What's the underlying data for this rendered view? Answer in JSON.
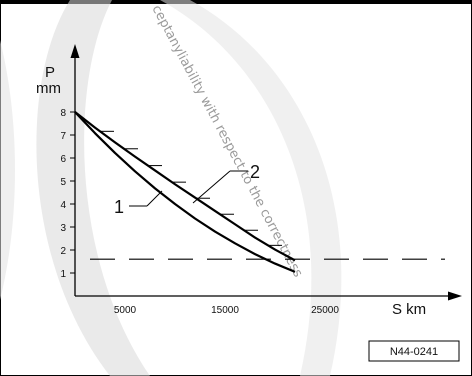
{
  "chart_data": {
    "type": "line",
    "ylabel_top": "P",
    "ylabel_unit": "mm",
    "xlabel": "S km",
    "x_ticks": [
      5000,
      15000,
      25000
    ],
    "y_ticks": [
      1,
      2,
      3,
      4,
      5,
      6,
      7,
      8
    ],
    "xlim": [
      0,
      32000
    ],
    "ylim": [
      0,
      11.5
    ],
    "series": [
      {
        "name": "1",
        "x": [
          0,
          2000,
          4000,
          6000,
          8000,
          10000,
          12000,
          14000,
          16000,
          18000,
          20000,
          22000
        ],
        "y": [
          8.0,
          7.08,
          6.22,
          5.42,
          4.68,
          4.0,
          3.37,
          2.8,
          2.29,
          1.82,
          1.41,
          1.05
        ]
      },
      {
        "name": "2",
        "x": [
          0,
          2000,
          4000,
          6000,
          8000,
          10000,
          12000,
          14000,
          16000,
          18000,
          20000,
          22000
        ],
        "y": [
          8.0,
          7.32,
          6.68,
          6.06,
          5.46,
          4.86,
          4.28,
          3.7,
          3.12,
          2.54,
          2.02,
          1.55
        ]
      }
    ],
    "limit_line": {
      "y": 1.6,
      "style": "dashed"
    },
    "callouts": [
      "1",
      "2"
    ],
    "reference_code": "N44-0241"
  },
  "watermark": {
    "text": "ceptanyliability with respect to the correctness"
  }
}
